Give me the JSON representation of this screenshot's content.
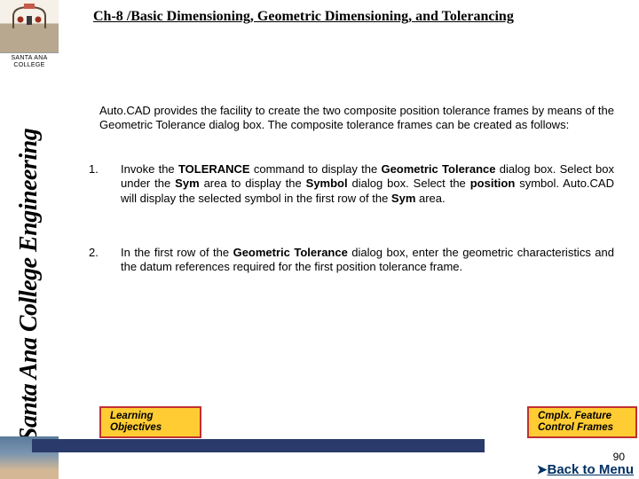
{
  "sidebar": {
    "college_line1": "SANTA ANA",
    "college_line2": "COLLEGE",
    "vertical_title": "Santa Ana College Engineering"
  },
  "title": "Ch-8 /Basic Dimensioning, Geometric Dimensioning, and Tolerancing",
  "intro": "Auto.CAD provides the facility to create the two composite position tolerance frames by means of the Geometric Tolerance dialog box. The composite tolerance frames can be created as follows:",
  "steps": [
    {
      "num": "1.",
      "parts": [
        {
          "t": "Invoke the ",
          "b": false
        },
        {
          "t": "TOLERANCE",
          "b": true
        },
        {
          "t": " command to display the ",
          "b": false
        },
        {
          "t": "Geometric Tolerance",
          "b": true
        },
        {
          "t": " dialog box. Select box under the ",
          "b": false
        },
        {
          "t": "Sym",
          "b": true
        },
        {
          "t": " area to display the ",
          "b": false
        },
        {
          "t": "Symbol",
          "b": true
        },
        {
          "t": " dialog box. Select the ",
          "b": false
        },
        {
          "t": "position",
          "b": true
        },
        {
          "t": " symbol. Auto.CAD will display the selected symbol in the first row of the ",
          "b": false
        },
        {
          "t": "Sym",
          "b": true
        },
        {
          "t": " area.",
          "b": false
        }
      ]
    },
    {
      "num": "2.",
      "parts": [
        {
          "t": "In the first row of the ",
          "b": false
        },
        {
          "t": "Geometric Tolerance",
          "b": true
        },
        {
          "t": " dialog box, enter the geometric characteristics and the datum references required for the first position tolerance frame.",
          "b": false
        }
      ]
    }
  ],
  "nav": {
    "left_line1": "Learning",
    "left_line2": "Objectives",
    "right_line1": "Cmplx. Feature",
    "right_line2": "Control Frames"
  },
  "page_number": "90",
  "back_link": "Back to Menu",
  "colors": {
    "button_bg": "#ffcc33",
    "button_border": "#c03030",
    "footer_bar": "#2a3a6a",
    "link": "#003063"
  }
}
